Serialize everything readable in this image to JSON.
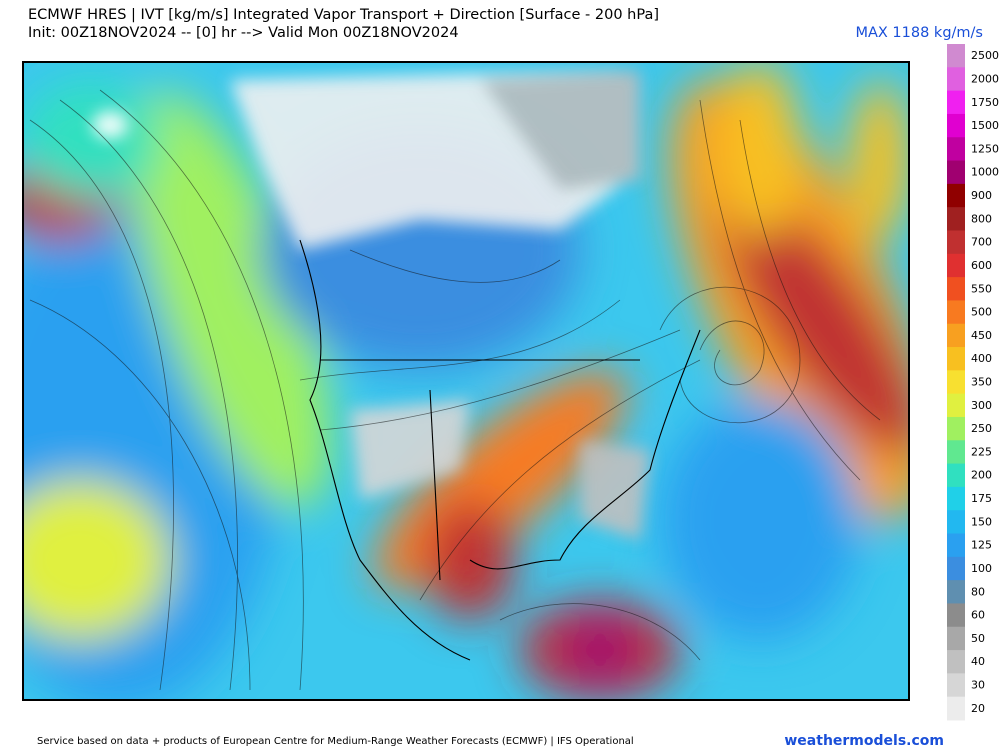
{
  "header": {
    "title": "ECMWF HRES | IVT [kg/m/s] Integrated Vapor Transport + Direction [Surface - 200 hPa]",
    "subtitle": "Init: 00Z18NOV2024 -- [0] hr --> Valid Mon 00Z18NOV2024",
    "max_label": "MAX 1188 kg/m/s"
  },
  "colorbar": {
    "levels": [
      2500,
      2000,
      1750,
      1500,
      1250,
      1000,
      900,
      800,
      700,
      600,
      550,
      500,
      450,
      400,
      350,
      300,
      250,
      225,
      200,
      175,
      150,
      125,
      100,
      80,
      60,
      50,
      40,
      30,
      20
    ],
    "colors": [
      "#d08ad0",
      "#e060e0",
      "#f020f0",
      "#e000d0",
      "#c000a0",
      "#a00070",
      "#900000",
      "#a02020",
      "#c03030",
      "#e03030",
      "#f05020",
      "#f87a20",
      "#f8a020",
      "#f8c020",
      "#f8e030",
      "#e0f040",
      "#a0f060",
      "#60e890",
      "#30e0c0",
      "#20d0e8",
      "#22b8f0",
      "#2aa0f0",
      "#3b8ee0",
      "#5f8fb0",
      "#8c8c8c",
      "#a8a8a8",
      "#c0c0c0",
      "#d6d6d6",
      "#ececec"
    ]
  },
  "footer": {
    "credit": "Service based on data + products of European Centre for Medium-Range Weather Forecasts (ECMWF) | IFS Operational",
    "site": "weathermodels.com"
  }
}
